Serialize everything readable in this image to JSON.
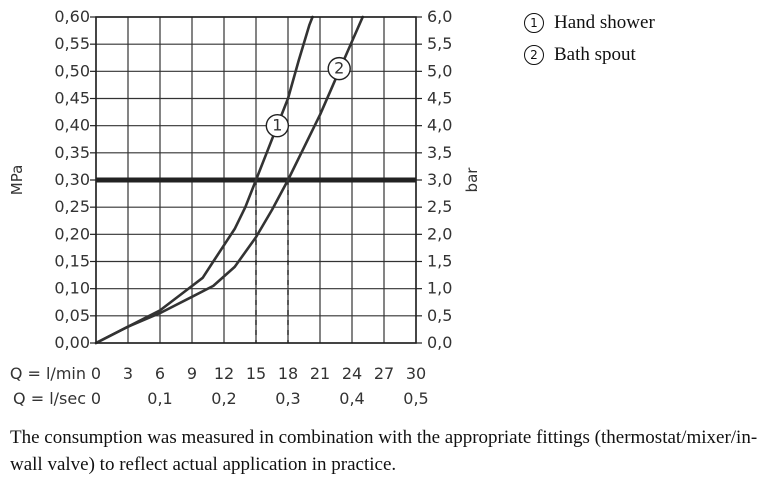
{
  "chart_data": {
    "type": "line",
    "title": "",
    "ylabel": "MPa",
    "y2label": "bar",
    "ylim": [
      0,
      0.6
    ],
    "xlim": [
      0,
      30
    ],
    "y_ticks": [
      "0,00",
      "0,05",
      "0,10",
      "0,15",
      "0,20",
      "0,25",
      "0,30",
      "0,35",
      "0,40",
      "0,45",
      "0,50",
      "0,55",
      "0,60"
    ],
    "y2_ticks": [
      "0,0",
      "0,5",
      "1,0",
      "1,5",
      "2,0",
      "2,5",
      "3,0",
      "3,5",
      "4,0",
      "4,5",
      "5,0",
      "5,5",
      "6,0"
    ],
    "x_row1_label": "Q = l/min",
    "x_row1_ticks": [
      "0",
      "3",
      "6",
      "9",
      "12",
      "15",
      "18",
      "21",
      "24",
      "27",
      "30"
    ],
    "x_row2_label": "Q = l/sec",
    "x_row2_ticks": [
      {
        "x": 0,
        "label": "0"
      },
      {
        "x": 6,
        "label": "0,1"
      },
      {
        "x": 12,
        "label": "0,2"
      },
      {
        "x": 18,
        "label": "0,3"
      },
      {
        "x": 24,
        "label": "0,4"
      },
      {
        "x": 30,
        "label": "0,5"
      }
    ],
    "grid": true,
    "reference_line": {
      "y": 0.3
    },
    "guide_lines": [
      {
        "x": 15,
        "y": 0.3
      },
      {
        "x": 18,
        "y": 0.3
      }
    ],
    "series": [
      {
        "marker": "1",
        "label_at": {
          "x": 17,
          "y": 0.4
        },
        "points": [
          [
            0,
            0
          ],
          [
            3,
            0.03
          ],
          [
            6,
            0.06
          ],
          [
            8,
            0.09
          ],
          [
            10,
            0.12
          ],
          [
            11,
            0.15
          ],
          [
            12,
            0.18
          ],
          [
            13,
            0.21
          ],
          [
            14,
            0.25
          ],
          [
            15,
            0.3
          ],
          [
            16,
            0.35
          ],
          [
            17,
            0.4
          ],
          [
            18,
            0.45
          ],
          [
            19,
            0.52
          ],
          [
            20,
            0.585
          ],
          [
            20.3,
            0.6
          ]
        ]
      },
      {
        "marker": "2",
        "label_at": {
          "x": 22.8,
          "y": 0.505
        },
        "points": [
          [
            0,
            0
          ],
          [
            3,
            0.03
          ],
          [
            6,
            0.055
          ],
          [
            9,
            0.085
          ],
          [
            11,
            0.105
          ],
          [
            13,
            0.14
          ],
          [
            15,
            0.195
          ],
          [
            16.5,
            0.245
          ],
          [
            18,
            0.3
          ],
          [
            19.5,
            0.36
          ],
          [
            21,
            0.42
          ],
          [
            22,
            0.465
          ],
          [
            23,
            0.51
          ],
          [
            24,
            0.555
          ],
          [
            25,
            0.6
          ]
        ]
      }
    ]
  },
  "legend": {
    "items": [
      {
        "marker": "1",
        "label": "Hand shower"
      },
      {
        "marker": "2",
        "label": "Bath spout"
      }
    ]
  },
  "note": "The consumption was measured in combination with the appropriate fittings (thermostat/mixer/in-wall valve) to reflect actual application in practice."
}
